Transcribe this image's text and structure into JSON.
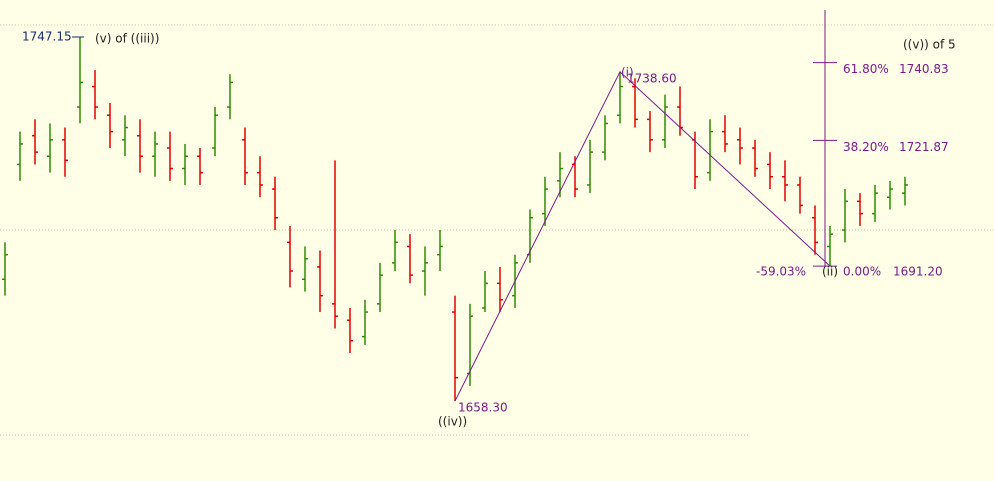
{
  "chart_data": {
    "type": "ohlc",
    "up_color": "#2e8b00",
    "down_color": "#e00000",
    "ylim": [
      1638.8,
      1756.1
    ],
    "grid_lines": [
      1650,
      1700,
      1750
    ],
    "open": [
      1688,
      1716,
      1723,
      1718,
      1722,
      1730,
      1735,
      1728,
      1722,
      1723,
      1718,
      1720,
      1715,
      1718,
      1720,
      1730,
      1722,
      1714,
      1710,
      1697,
      1688,
      1691,
      1682,
      1678,
      1674,
      1682,
      1692,
      1696,
      1690,
      1694,
      1680,
      1665,
      1681,
      1687,
      1684,
      1694,
      1704,
      1712,
      1716,
      1711,
      1719,
      1728,
      1735,
      1727,
      1722,
      1730,
      1722,
      1714,
      1724,
      1722,
      1720,
      1716,
      1713,
      1711,
      1703,
      1696,
      1700,
      1707,
      1704,
      1708,
      1709
    ],
    "high": [
      1697,
      1724,
      1727,
      1726,
      1725,
      1747.15,
      1739,
      1731,
      1728,
      1727,
      1724,
      1724,
      1721,
      1720,
      1730,
      1738,
      1725,
      1718,
      1713,
      1701,
      1696,
      1695,
      1717,
      1681,
      1683,
      1692,
      1700,
      1699,
      1696,
      1700,
      1684,
      1682,
      1690,
      1691,
      1694,
      1705,
      1713,
      1719,
      1718,
      1722,
      1728,
      1738.6,
      1737,
      1729,
      1733,
      1735,
      1724,
      1727,
      1728,
      1725,
      1722,
      1719,
      1717,
      1713,
      1706,
      1701,
      1710,
      1709,
      1711,
      1712,
      1713
    ],
    "low": [
      1684,
      1712,
      1716,
      1714,
      1713,
      1726,
      1727,
      1720,
      1718,
      1714,
      1713,
      1712,
      1711,
      1711,
      1718,
      1727,
      1711,
      1708,
      1700,
      1686,
      1685,
      1680,
      1676,
      1670,
      1672,
      1680,
      1690,
      1687,
      1684,
      1690,
      1658.3,
      1662,
      1680,
      1680,
      1681,
      1692,
      1701,
      1708,
      1708,
      1709,
      1717,
      1726,
      1725,
      1719,
      1720,
      1723,
      1710,
      1712,
      1719,
      1716,
      1713,
      1710,
      1707,
      1704,
      1694,
      1691.2,
      1697,
      1701,
      1702,
      1705,
      1706
    ],
    "close": [
      1694,
      1721,
      1719,
      1722,
      1717,
      1736,
      1730,
      1724,
      1725,
      1718,
      1721,
      1715,
      1718,
      1714,
      1728,
      1736,
      1714,
      1711,
      1703,
      1690,
      1693,
      1684,
      1679,
      1673,
      1680,
      1689,
      1697,
      1689,
      1692,
      1696,
      1664,
      1679,
      1687,
      1683,
      1692,
      1703,
      1710,
      1715,
      1710,
      1719,
      1726,
      1735,
      1727,
      1722,
      1730,
      1725,
      1713,
      1724,
      1721,
      1720,
      1715,
      1713,
      1711,
      1706,
      1697,
      1699,
      1707,
      1704,
      1709,
      1710,
      1711
    ],
    "annotations": {
      "high_price": "1747.15",
      "high_wave": "(v) of ((iii))",
      "target": "((v)) of 5",
      "wave_i": "(i)",
      "wave_i_price": "1738.60",
      "wave_iv": "((iv))",
      "wave_iv_price": "1658.30",
      "wave_ii": "(ii)",
      "retrace": "-59.03%"
    },
    "fibonacci": {
      "color": "#7a1a8a",
      "levels": [
        {
          "label": "61.80%",
          "price": 1740.83
        },
        {
          "label": "38.20%",
          "price": 1721.87
        },
        {
          "label": "0.00%",
          "price": {
            "value": 1691.2,
            "label": "1691.20"
          }
        }
      ]
    }
  }
}
